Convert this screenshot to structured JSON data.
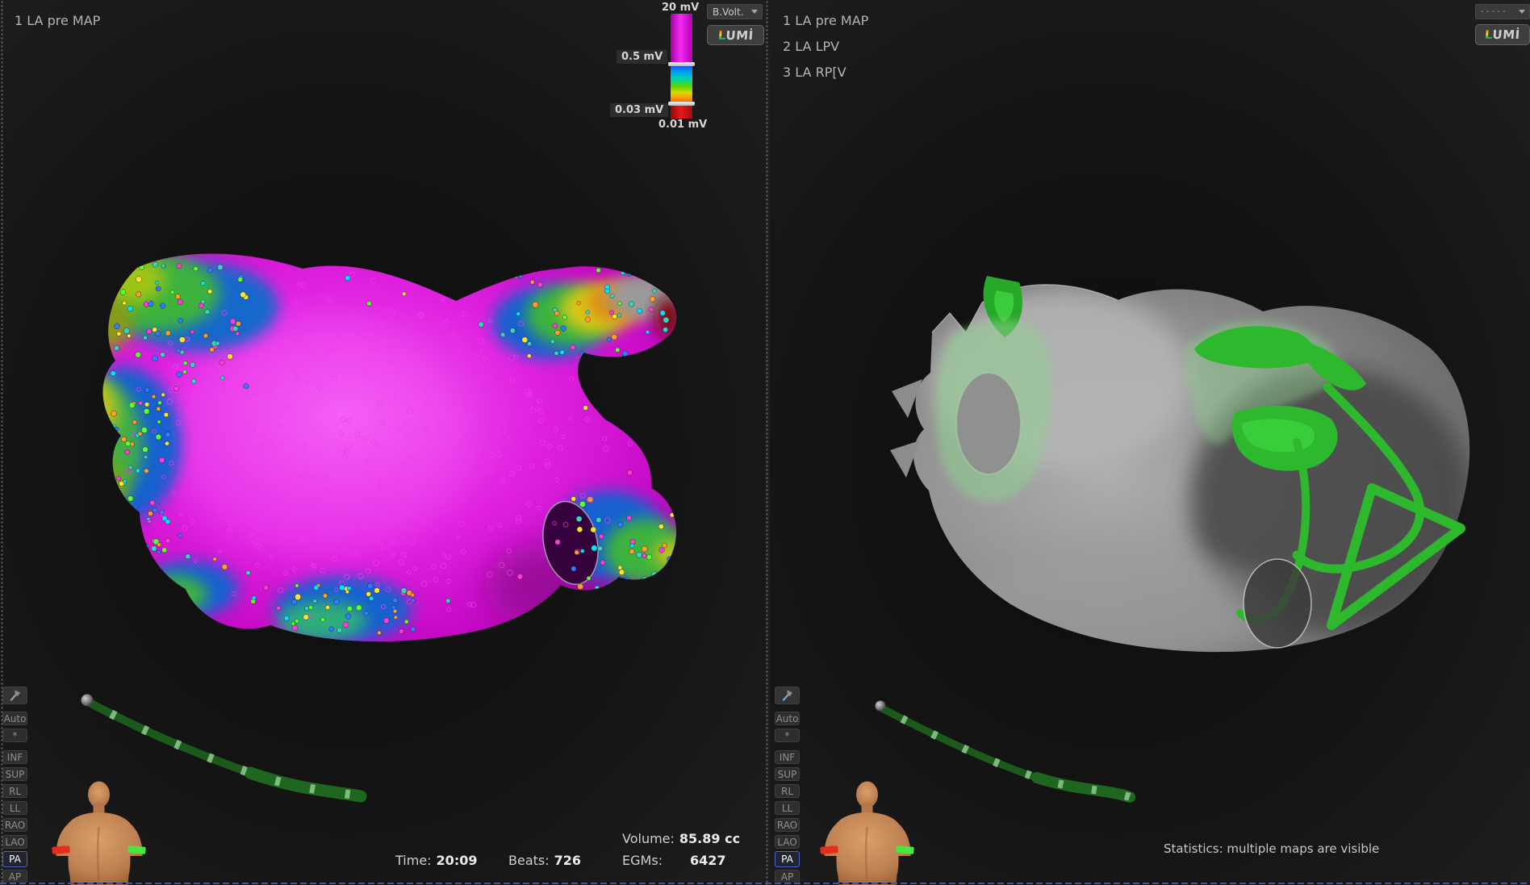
{
  "colors": {
    "selection_blue": "#4f64c9",
    "map_magenta": "#d214d2",
    "overlay_green": "#2eb82e",
    "catheter_green": "#1c5a1c",
    "torso_skin": "#c98d5f",
    "scale_magenta": "#f32bf3",
    "scale_red": "#e81818"
  },
  "shared": {
    "orientation_buttons": [
      "Auto",
      "*",
      "INF",
      "SUP",
      "RL",
      "LL",
      "RAO",
      "LAO",
      "PA",
      "AP"
    ],
    "selected_orientation": "PA",
    "lumi": {
      "first_letter": "L",
      "rest": "UMİ"
    }
  },
  "left_panel": {
    "title": "1 LA pre MAP",
    "voltage_scale": {
      "max": "20 mV",
      "upper_threshold": "0.5 mV",
      "lower_threshold": "0.03 mV",
      "min": "0.01 mV"
    },
    "map_type_dropdown": "B.Volt.",
    "stats": {
      "time_label": "Time:",
      "time_value": "20:09",
      "beats_label": "Beats:",
      "beats_value": "726",
      "volume_label": "Volume:",
      "volume_value": "85.89 cc",
      "egms_label": "EGMs:",
      "egms_value": "6427"
    }
  },
  "right_panel": {
    "map_list": [
      "1 LA pre MAP",
      "2 LA LPV",
      "3 LA RP[V"
    ],
    "map_dropdown": "- - - - -",
    "statistics_text": "Statistics: multiple maps are visible"
  }
}
